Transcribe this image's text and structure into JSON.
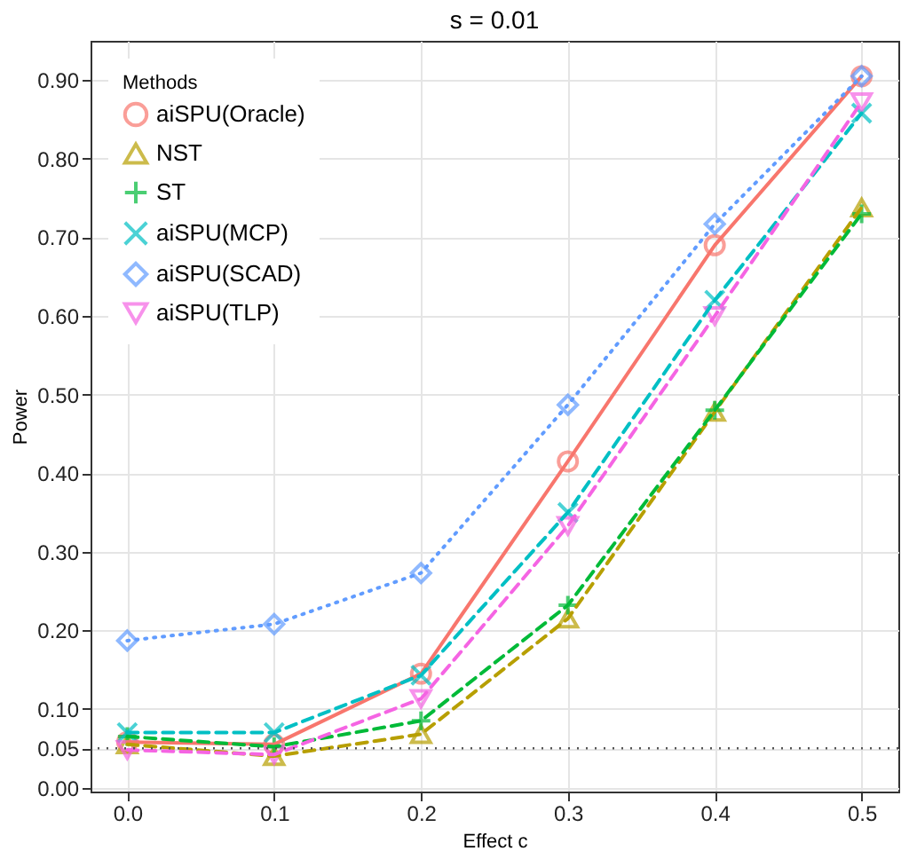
{
  "chart_data": {
    "type": "line",
    "title": "s = 0.01",
    "xlabel": "Effect c",
    "ylabel": "Power",
    "legend_title": "Methods",
    "x": [
      0.0,
      0.1,
      0.2,
      0.3,
      0.4,
      0.5
    ],
    "series": [
      {
        "name": "aiSPU(Oracle)",
        "color": "#f8766d",
        "marker": "circle",
        "line_style": "solid",
        "values": [
          0.058,
          0.055,
          0.145,
          0.415,
          0.69,
          0.905
        ]
      },
      {
        "name": "NST",
        "color": "#b79f00",
        "marker": "triangle",
        "line_style": "dashed",
        "values": [
          0.055,
          0.04,
          0.068,
          0.215,
          0.478,
          0.738
        ]
      },
      {
        "name": "ST",
        "color": "#00ba38",
        "marker": "cross",
        "line_style": "dashed",
        "values": [
          0.065,
          0.052,
          0.085,
          0.232,
          0.48,
          0.73
        ]
      },
      {
        "name": "aiSPU(MCP)",
        "color": "#00bfc4",
        "marker": "cross",
        "line_style": "dashed",
        "values": [
          0.07,
          0.07,
          0.143,
          0.35,
          0.62,
          0.858
        ]
      },
      {
        "name": "aiSPU(SCAD)",
        "color": "#619cff",
        "marker": "diamond",
        "line_style": "dotted",
        "values": [
          0.187,
          0.208,
          0.273,
          0.487,
          0.717,
          0.905
        ]
      },
      {
        "name": "aiSPU(TLP)",
        "color": "#f564e3",
        "marker": "triangle",
        "line_style": "dashed",
        "values": [
          0.048,
          0.042,
          0.113,
          0.333,
          0.6,
          0.872
        ]
      }
    ],
    "xlim": [
      -0.025,
      0.525
    ],
    "xticks": [
      {
        "value": 0.0,
        "label": "0.0"
      },
      0.1,
      0.2,
      0.3,
      0.4,
      0.5
    ],
    "ylim": [
      -0.005,
      0.95
    ],
    "yticks": [
      {
        "value": 0,
        "label": "0.00"
      },
      {
        "value": 0.05,
        "label": "0.05"
      },
      {
        "value": 0.1,
        "label": "0.10"
      },
      {
        "value": 0.2,
        "label": "0.20"
      },
      {
        "value": 0.3,
        "label": "0.30"
      },
      {
        "value": 0.4,
        "label": "0.40"
      },
      {
        "value": 0.5,
        "label": "0.50"
      },
      {
        "value": 0.6,
        "label": "0.60"
      },
      {
        "value": 0.7,
        "label": "0.70"
      },
      {
        "value": 0.8,
        "label": "0.80"
      },
      {
        "value": 0.9,
        "label": "0.90"
      }
    ],
    "ref_lines": [
      {
        "axis": "y",
        "value": 0.05,
        "color": "#555555",
        "line_style": "dotted"
      }
    ],
    "grid": true,
    "legend": "top left"
  }
}
